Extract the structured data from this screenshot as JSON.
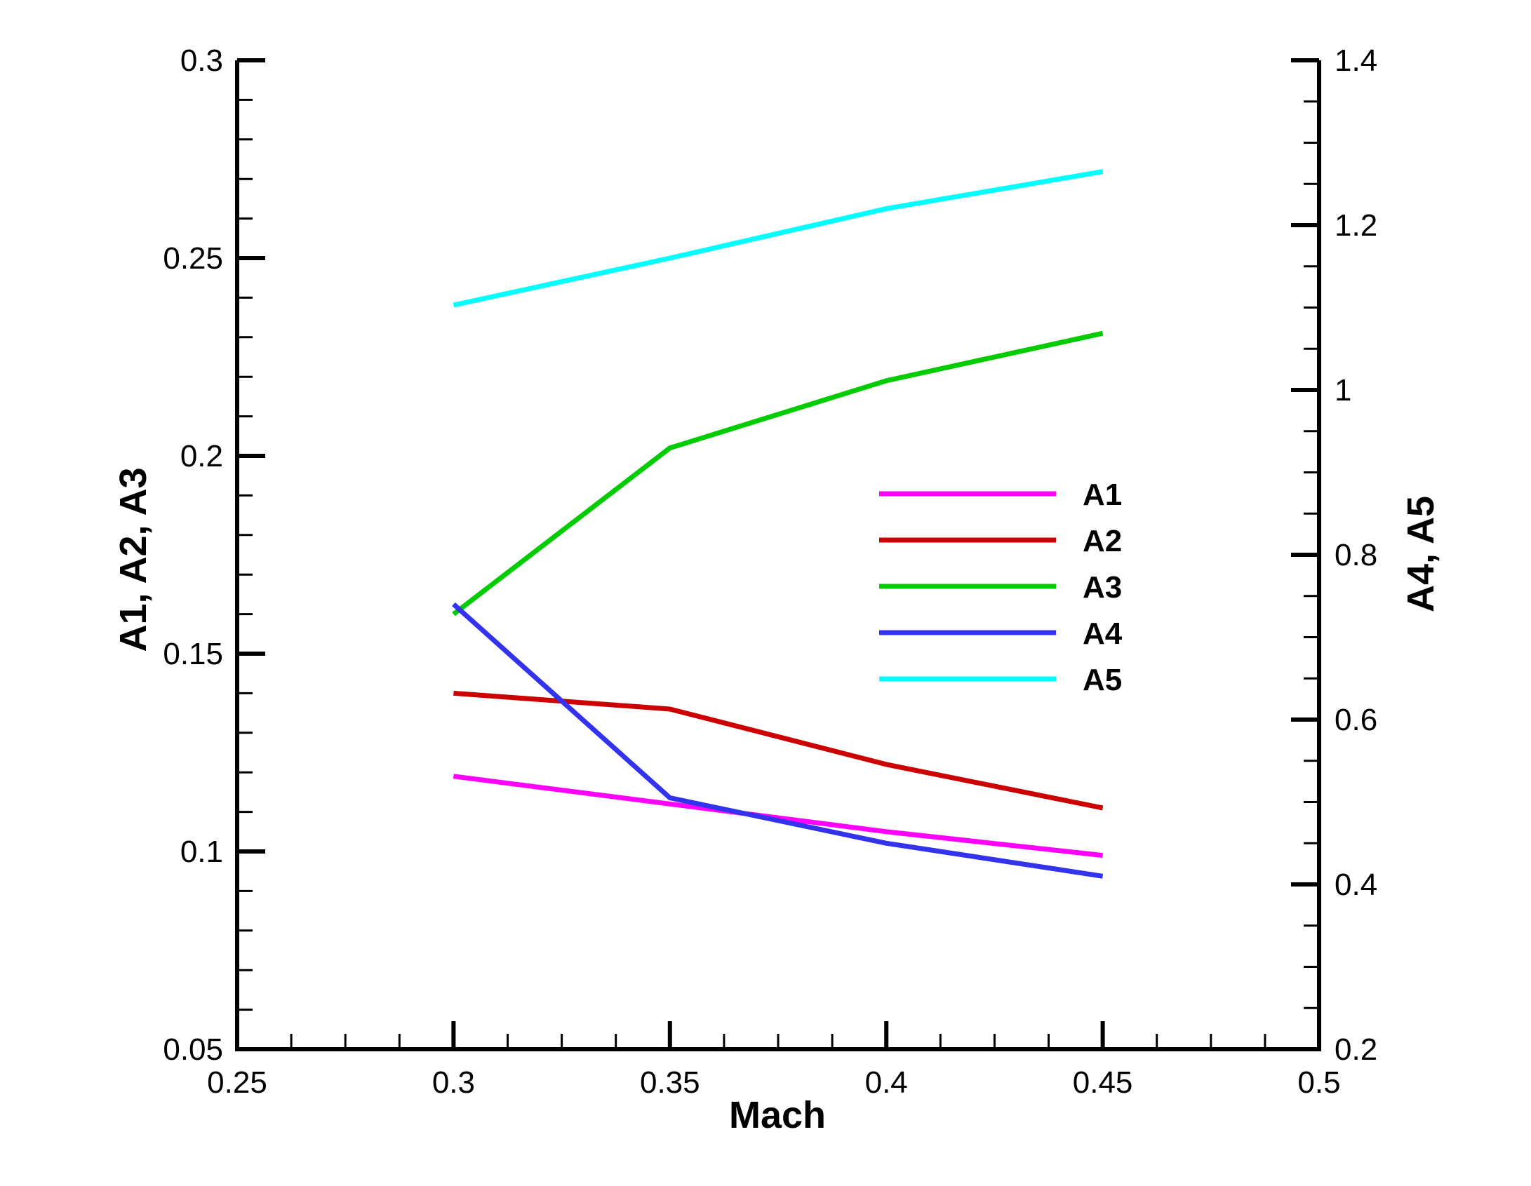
{
  "chart_data": {
    "type": "line",
    "xlabel": "Mach",
    "ylabel_left": "A1, A2, A3",
    "ylabel_right": "A4, A5",
    "xlim": [
      0.25,
      0.5
    ],
    "ylim_left": [
      0.05,
      0.3
    ],
    "ylim_right": [
      0.2,
      1.4
    ],
    "x_ticks": [
      "0.25",
      "0.3",
      "0.35",
      "0.4",
      "0.45",
      "0.5"
    ],
    "y_left_ticks": [
      "0.05",
      "0.1",
      "0.15",
      "0.2",
      "0.25",
      "0.3"
    ],
    "y_right_ticks": [
      "0.2",
      "0.4",
      "0.6",
      "0.8",
      "1",
      "1.2",
      "1.4"
    ],
    "grid": false,
    "legend_position": "center-right",
    "x": [
      0.3,
      0.35,
      0.4,
      0.45
    ],
    "series": [
      {
        "name": "A1",
        "axis": "left",
        "color": "#ff00ff",
        "values": [
          0.119,
          0.112,
          0.105,
          0.099
        ]
      },
      {
        "name": "A2",
        "axis": "left",
        "color": "#cc0000",
        "values": [
          0.14,
          0.136,
          0.122,
          0.111
        ]
      },
      {
        "name": "A3",
        "axis": "left",
        "color": "#00cc00",
        "values": [
          0.16,
          0.202,
          0.219,
          0.231
        ]
      },
      {
        "name": "A4",
        "axis": "right",
        "color": "#3333ee",
        "values": [
          0.74,
          0.505,
          0.45,
          0.41
        ]
      },
      {
        "name": "A5",
        "axis": "right",
        "color": "#00ffff",
        "values": [
          1.103,
          1.16,
          1.22,
          1.265
        ]
      }
    ]
  }
}
